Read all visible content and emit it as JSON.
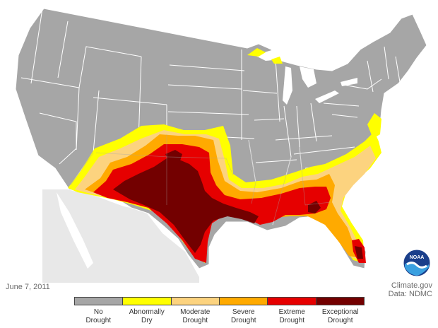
{
  "date_label": "June 7, 2011",
  "credit": {
    "line1": "Climate.gov",
    "line2": "Data: NDMC"
  },
  "logo_text": "NOAA",
  "legend": [
    {
      "line1": "No",
      "line2": "Drought",
      "color": "#a6a6a6"
    },
    {
      "line1": "Abnormally",
      "line2": "Dry",
      "color": "#ffff00"
    },
    {
      "line1": "Moderate",
      "line2": "Drought",
      "color": "#fcd37f"
    },
    {
      "line1": "Severe",
      "line2": "Drought",
      "color": "#ffaa00"
    },
    {
      "line1": "Extreme",
      "line2": "Drought",
      "color": "#e60000"
    },
    {
      "line1": "Exceptional",
      "line2": "Drought",
      "color": "#730000"
    }
  ],
  "colors": {
    "land": "#a6a6a6",
    "water": "#ffffff",
    "state_line": "#ffffff",
    "neighbor_land": "#e6e6e6"
  }
}
